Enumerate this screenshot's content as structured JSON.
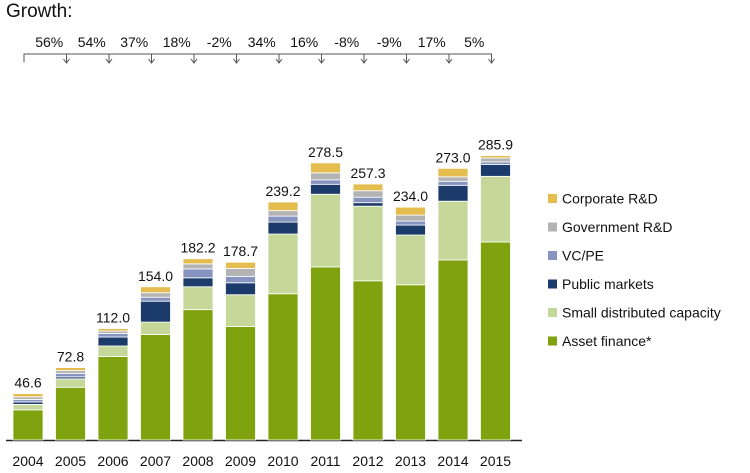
{
  "growth_title": "Growth:",
  "chart_data": {
    "type": "bar",
    "stacked": true,
    "categories": [
      "2004",
      "2005",
      "2006",
      "2007",
      "2008",
      "2009",
      "2010",
      "2011",
      "2012",
      "2013",
      "2014",
      "2015"
    ],
    "totals": [
      "46.6",
      "72.8",
      "112.0",
      "154.0",
      "182.2",
      "178.7",
      "239.2",
      "278.5",
      "257.3",
      "234.0",
      "273.0",
      "285.9"
    ],
    "growth": [
      "56%",
      "54%",
      "37%",
      "18%",
      "-2%",
      "34%",
      "16%",
      "-8%",
      "-9%",
      "17%",
      "5%"
    ],
    "series": [
      {
        "name": "Asset finance*",
        "color": "#7fa30f",
        "values": [
          30.3,
          53.0,
          84.0,
          106.0,
          131.0,
          114.0,
          147.0,
          174.0,
          160.0,
          156.0,
          181.0,
          199.0
        ]
      },
      {
        "name": "Small distributed capacity",
        "color": "#c5d89a",
        "values": [
          5.5,
          8.5,
          10.5,
          12.5,
          23.0,
          32.0,
          60.0,
          73.0,
          75.0,
          50.0,
          59.0,
          66.0
        ]
      },
      {
        "name": "Public markets",
        "color": "#1b3c6b",
        "values": [
          2.5,
          2.0,
          9.0,
          21.0,
          9.0,
          12.0,
          12.0,
          10.0,
          3.5,
          10.0,
          16.0,
          12.0
        ]
      },
      {
        "name": "VC/PE",
        "color": "#8794bf",
        "values": [
          2.5,
          3.5,
          3.5,
          4.0,
          9.0,
          6.5,
          6.0,
          4.5,
          5.5,
          4.0,
          4.0,
          2.5
        ]
      },
      {
        "name": "Government R&D",
        "color": "#b3b3b3",
        "values": [
          2.6,
          2.8,
          2.5,
          4.5,
          5.0,
          8.0,
          5.5,
          7.0,
          6.5,
          6.0,
          4.5,
          4.0
        ]
      },
      {
        "name": "Corporate R&D",
        "color": "#e5bd4f",
        "values": [
          3.2,
          3.0,
          2.5,
          6.0,
          5.2,
          6.2,
          8.7,
          10.0,
          6.8,
          8.0,
          8.5,
          2.4
        ]
      }
    ],
    "ylim": [
      0,
      300
    ],
    "legend_position": "right",
    "grid": false
  }
}
